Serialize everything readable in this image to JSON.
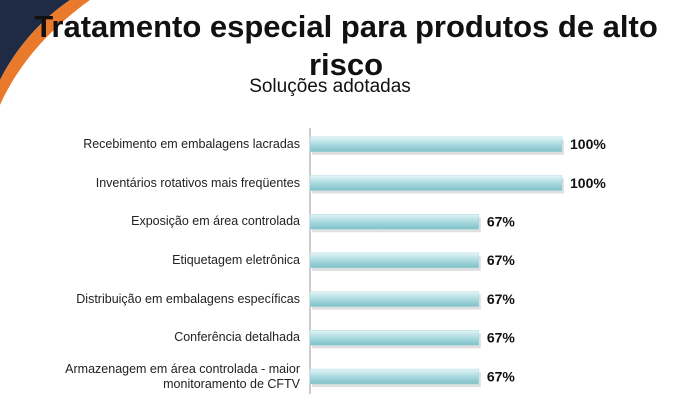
{
  "chart_data": {
    "type": "bar",
    "orientation": "horizontal",
    "title": "Tratamento especial para produtos de alto risco",
    "subtitle": "Soluções adotadas",
    "categories": [
      "Recebimento em embalagens lacradas",
      "Inventários rotativos mais freqüentes",
      "Exposição em área controlada",
      "Etiquetagem eletrônica",
      "Distribuição em embalagens específicas",
      "Conferência detalhada",
      "Armazenagem em área controlada - maior monitoramento de CFTV"
    ],
    "values": [
      100,
      100,
      67,
      67,
      67,
      67,
      67
    ],
    "value_labels": [
      "100%",
      "100%",
      "67%",
      "67%",
      "67%",
      "67%",
      "67%"
    ],
    "color": "#a9dadf"
  }
}
